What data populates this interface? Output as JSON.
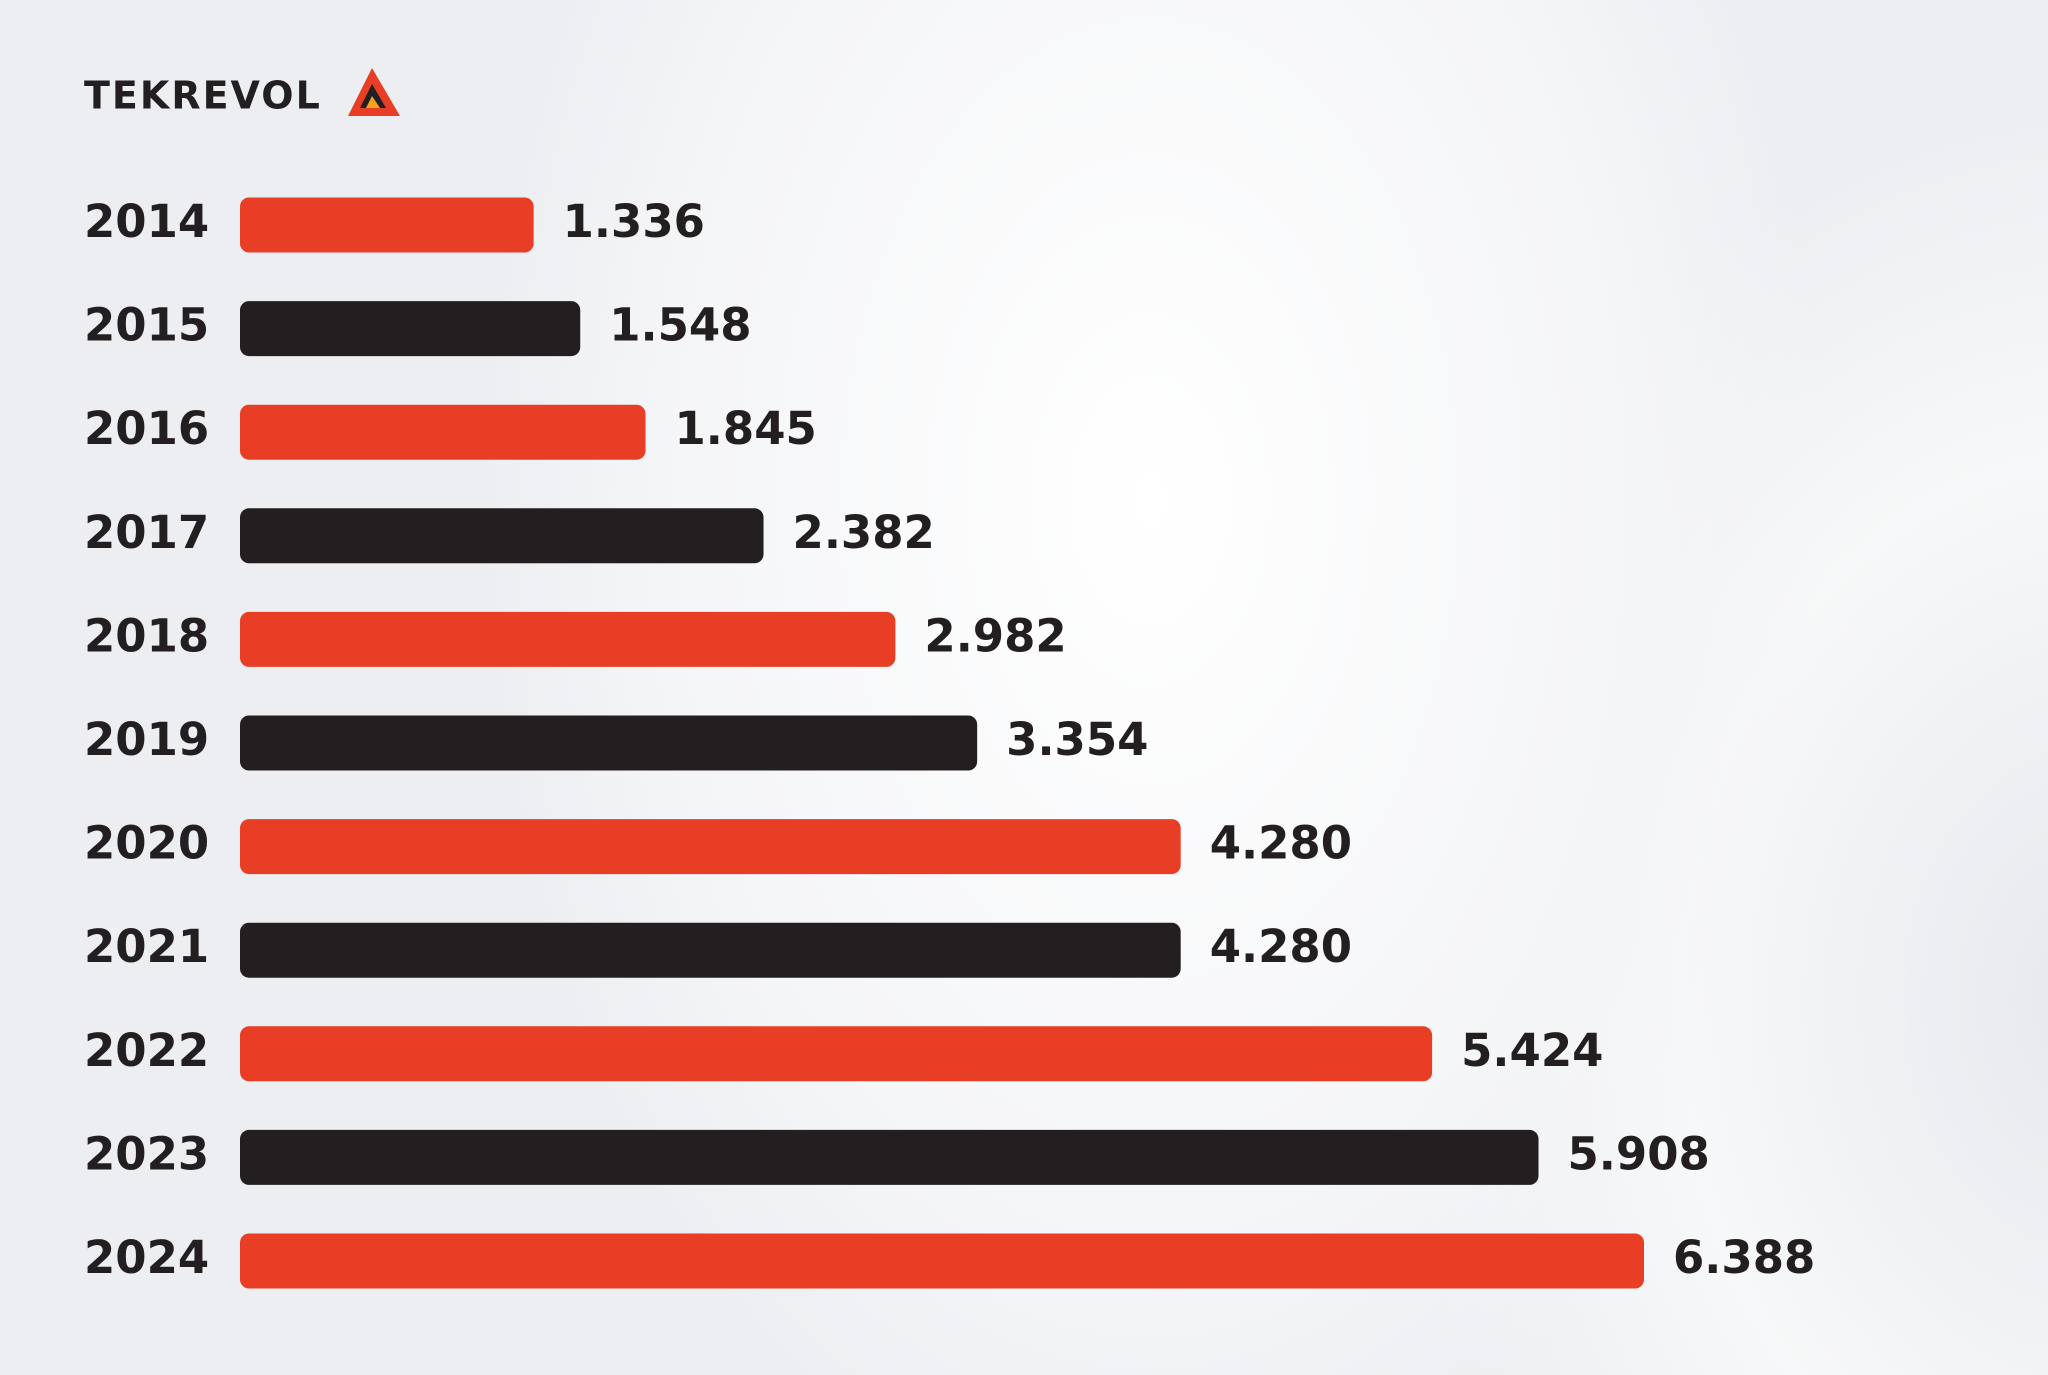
{
  "logo": "TEKREVOL",
  "chart_data": {
    "type": "bar",
    "orientation": "horizontal",
    "categories": [
      "2014",
      "2015",
      "2016",
      "2017",
      "2018",
      "2019",
      "2020",
      "2021",
      "2022",
      "2023",
      "2024"
    ],
    "values": [
      1.336,
      1.548,
      1.845,
      2.382,
      2.982,
      3.354,
      4.28,
      4.28,
      5.424,
      5.908,
      6.388
    ],
    "value_labels": [
      "1.336",
      "1.548",
      "1.845",
      "2.382",
      "2.982",
      "3.354",
      "4.280",
      "4.280",
      "5.424",
      "5.908",
      "6.388"
    ],
    "colors": [
      "#e83e26",
      "#231f20",
      "#e83e26",
      "#231f20",
      "#e83e26",
      "#231f20",
      "#e83e26",
      "#231f20",
      "#e83e26",
      "#231f20",
      "#e83e26"
    ]
  }
}
